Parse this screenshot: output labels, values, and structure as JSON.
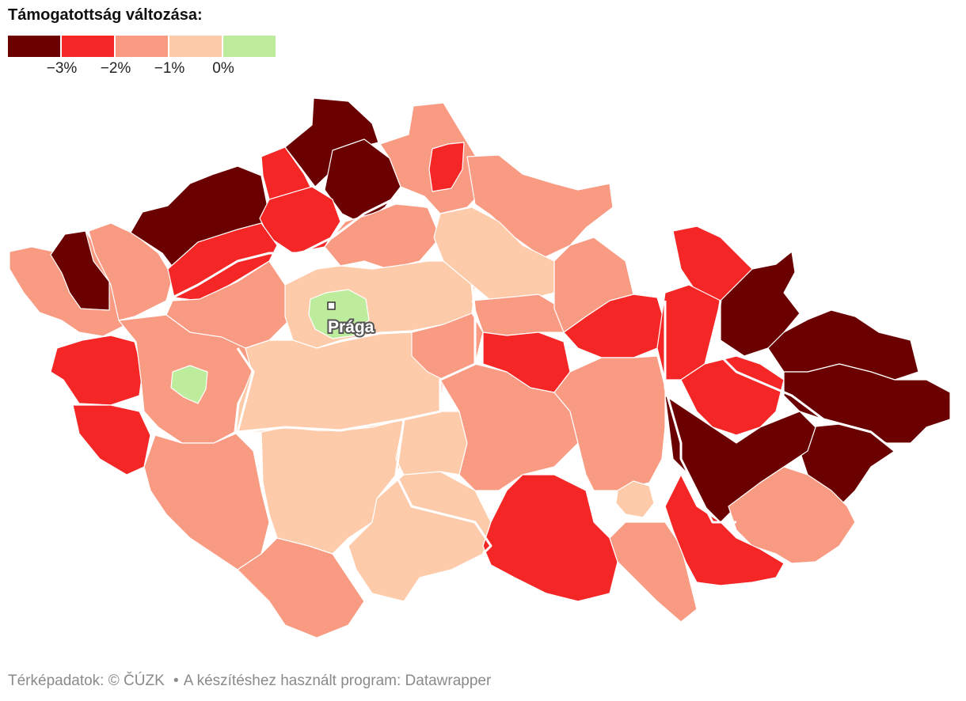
{
  "legend": {
    "title": "Támogatottság változása:",
    "swatches": [
      {
        "color": "#6b0000",
        "meaning": "below -3%"
      },
      {
        "color": "#f52626",
        "meaning": "-3% to -2%"
      },
      {
        "color": "#f99a82",
        "meaning": "-2% to -1%"
      },
      {
        "color": "#fdcbaa",
        "meaning": "-1% to 0%"
      },
      {
        "color": "#bdec9c",
        "meaning": "above 0%"
      }
    ],
    "ticks": [
      "−3%",
      "−2%",
      "−1%",
      "0%"
    ]
  },
  "map": {
    "city_label": "Prága",
    "colors": {
      "dark": "#6b0000",
      "red": "#f52626",
      "salmon": "#f99a82",
      "peach": "#fdcbaa",
      "green": "#bdec9c",
      "border": "#ffffff"
    }
  },
  "footer": {
    "source": "Térképadatok: © ČÚZK",
    "separator": "•",
    "tool": "A készítéshez használt program: Datawrapper"
  }
}
